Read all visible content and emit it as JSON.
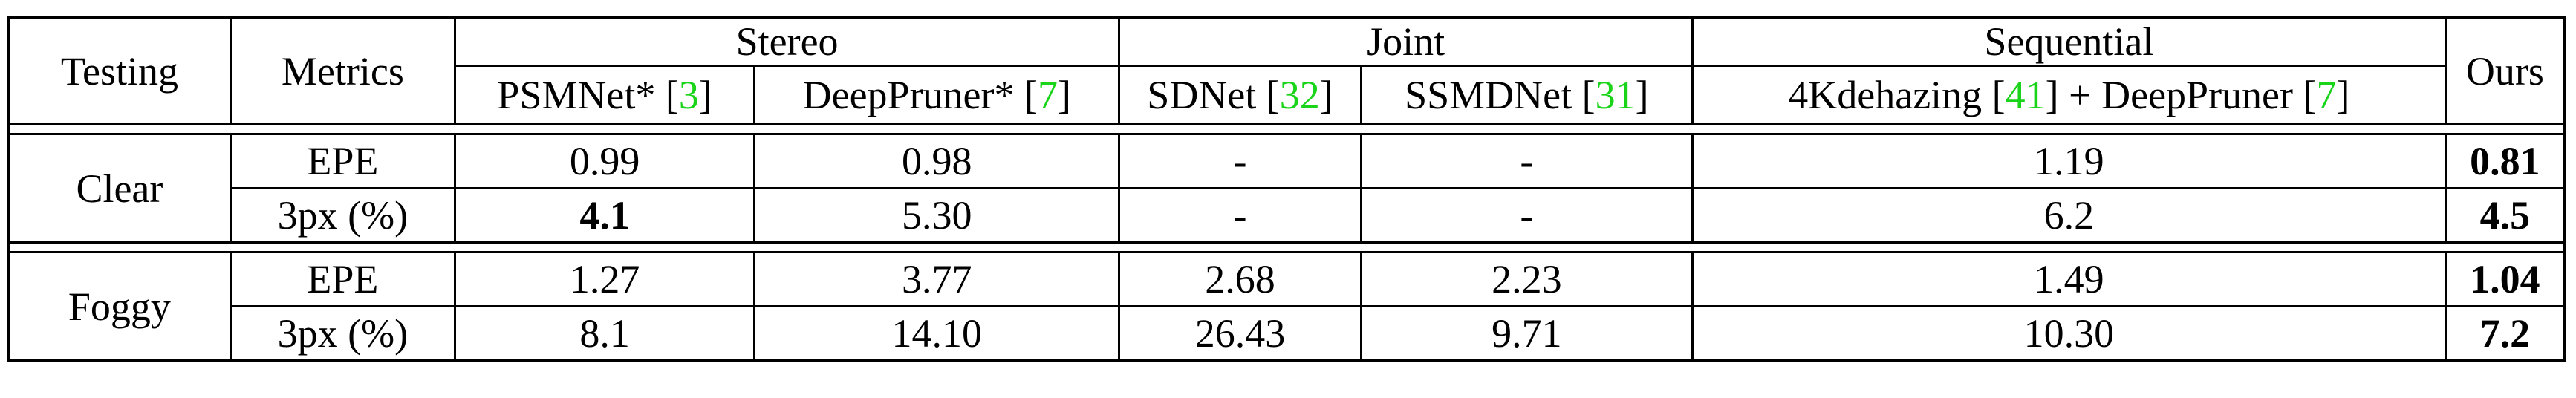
{
  "header": {
    "testing": "Testing",
    "metrics": "Metrics",
    "groups": [
      "Stereo",
      "Joint",
      "Sequential"
    ],
    "ours": "Ours",
    "methods": [
      {
        "name": "PSMNet* [",
        "cite": "3",
        "close": "]"
      },
      {
        "name": "DeepPruner* [",
        "cite": "7",
        "close": "]"
      },
      {
        "name": "SDNet [",
        "cite": "32",
        "close": "]"
      },
      {
        "name": "SSMDNet [",
        "cite": "31",
        "close": "]"
      },
      {
        "name": "4Kdehazing [",
        "cite": "41",
        "mid": "] + DeepPruner [",
        "cite2": "7",
        "close": "]"
      }
    ]
  },
  "rows": [
    {
      "testing": "Clear",
      "metric": "EPE",
      "values": [
        "0.99",
        "0.98",
        "-",
        "-",
        "1.19",
        "0.81"
      ]
    },
    {
      "testing": "Clear",
      "metric": "3px (%)",
      "values": [
        "4.1",
        "5.30",
        "-",
        "-",
        "6.2",
        "4.5"
      ]
    },
    {
      "testing": "Foggy",
      "metric": "EPE",
      "values": [
        "1.27",
        "3.77",
        "2.68",
        "2.23",
        "1.49",
        "1.04"
      ]
    },
    {
      "testing": "Foggy",
      "metric": "3px (%)",
      "values": [
        "8.1",
        "14.10",
        "26.43",
        "9.71",
        "10.30",
        "7.2"
      ]
    }
  ],
  "styles": {
    "citation_color": "#19d419",
    "line_color": "#000000"
  }
}
